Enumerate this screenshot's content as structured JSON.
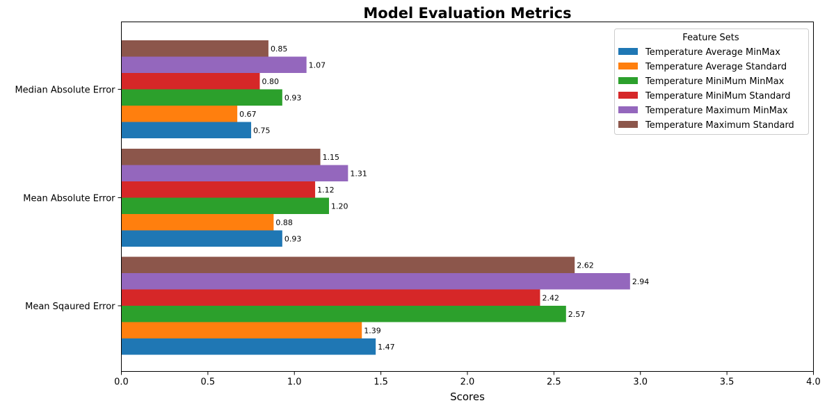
{
  "chart_data": {
    "type": "bar",
    "orientation": "horizontal",
    "title": "Model Evaluation Metrics",
    "xlabel": "Scores",
    "ylabel": "",
    "xlim": [
      0,
      4.0
    ],
    "xticks": [
      "0.0",
      "0.5",
      "1.0",
      "1.5",
      "2.0",
      "2.5",
      "3.0",
      "3.5",
      "4.0"
    ],
    "categories": [
      "Mean Sqaured Error",
      "Mean Absolute Error",
      "Median Absolute Error"
    ],
    "legend": {
      "title": "Feature Sets",
      "placement": "top-right"
    },
    "grid": false,
    "series": [
      {
        "name": "Temperature Average MinMax",
        "color": "#1f77b4",
        "values": [
          1.47,
          0.93,
          0.75
        ],
        "labels": [
          "1.47",
          "0.93",
          "0.75"
        ]
      },
      {
        "name": "Temperature Average Standard",
        "color": "#ff7f0e",
        "values": [
          1.39,
          0.88,
          0.67
        ],
        "labels": [
          "1.39",
          "0.88",
          "0.67"
        ]
      },
      {
        "name": "Temperature MiniMum MinMax",
        "color": "#2ca02c",
        "values": [
          2.57,
          1.2,
          0.93
        ],
        "labels": [
          "2.57",
          "1.20",
          "0.93"
        ]
      },
      {
        "name": "Temperature MiniMum Standard",
        "color": "#d62728",
        "values": [
          2.42,
          1.12,
          0.8
        ],
        "labels": [
          "2.42",
          "1.12",
          "0.80"
        ]
      },
      {
        "name": "Temperature Maximum MinMax",
        "color": "#9467bd",
        "values": [
          2.94,
          1.31,
          1.07
        ],
        "labels": [
          "2.94",
          "1.31",
          "1.07"
        ]
      },
      {
        "name": "Temperature Maximum Standard",
        "color": "#8c564b",
        "values": [
          2.62,
          1.15,
          0.85
        ],
        "labels": [
          "2.62",
          "1.15",
          "0.85"
        ]
      }
    ]
  }
}
